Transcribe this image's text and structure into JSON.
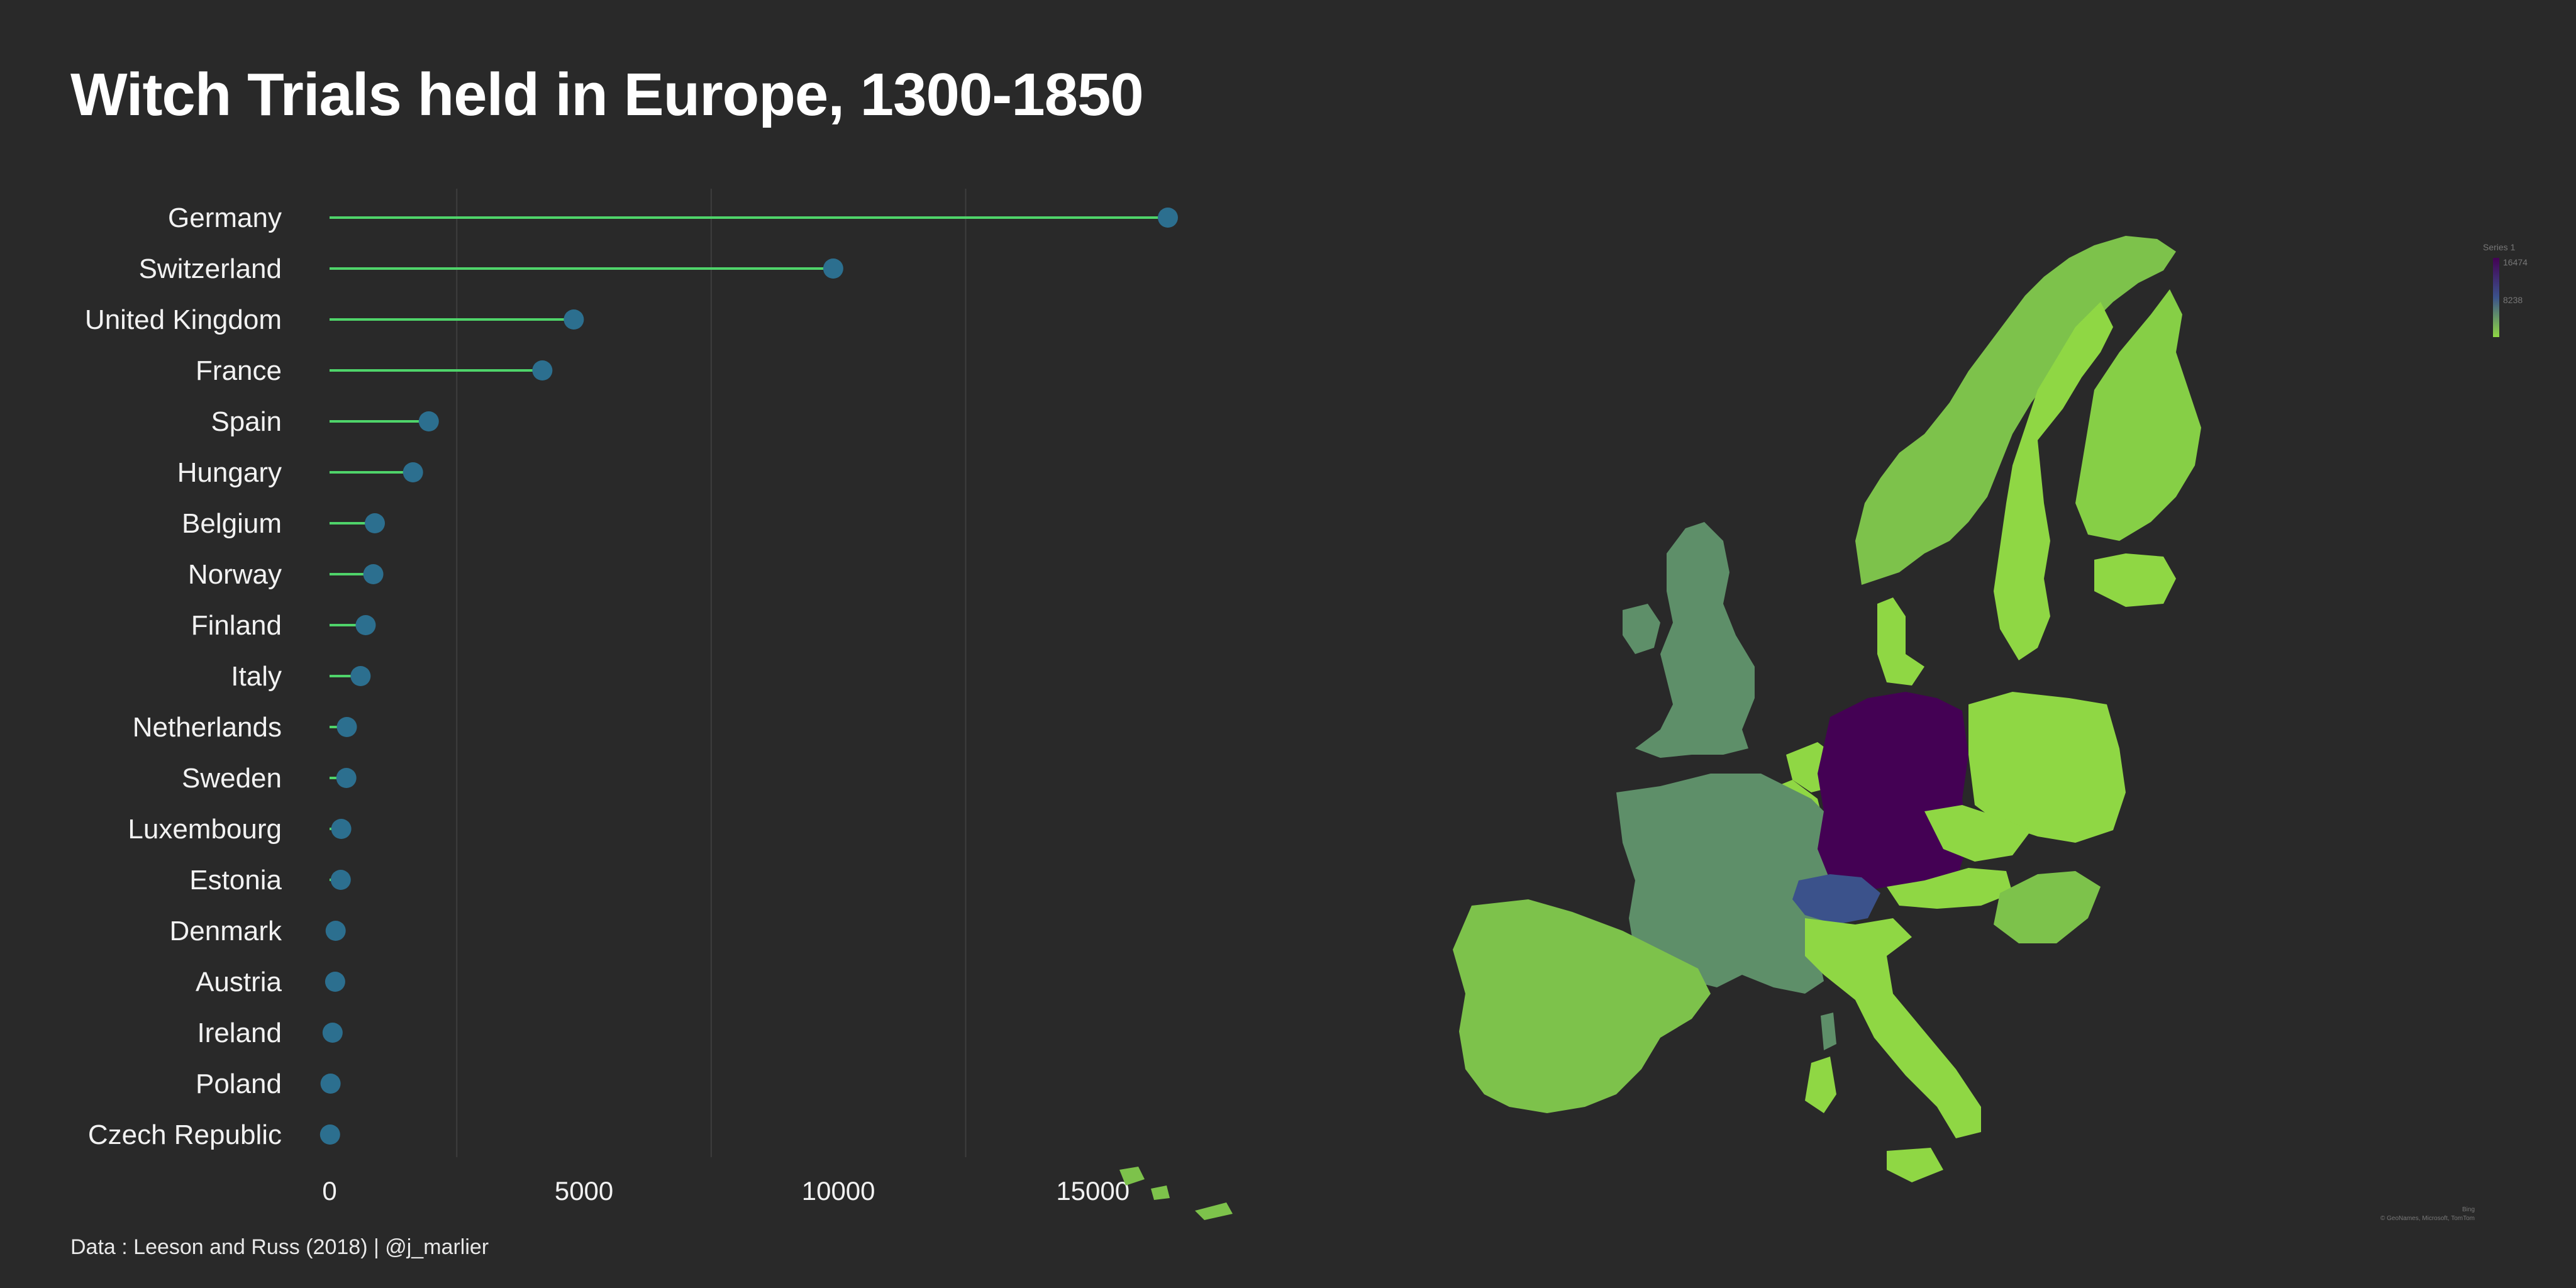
{
  "title": "Witch Trials held in Europe, 1300-1850",
  "caption": "Data : Leeson and Russ (2018) | @j_marlier",
  "colors": {
    "background": "#292929",
    "stem": "#4fd46a",
    "dot": "#2c6f8f",
    "grid": "#3d3d3d",
    "text": "#f2f2f2"
  },
  "chart_data": {
    "type": "lollipop",
    "title": "Witch Trials held in Europe, 1300-1850",
    "xlabel": "",
    "ylabel": "",
    "xlim": [
      0,
      17500
    ],
    "xticks": [
      0,
      5000,
      10000,
      15000
    ],
    "grid": true,
    "categories": [
      "Germany",
      "Switzerland",
      "United Kingdom",
      "France",
      "Spain",
      "Hungary",
      "Belgium",
      "Norway",
      "Finland",
      "Italy",
      "Netherlands",
      "Sweden",
      "Luxembourg",
      "Estonia",
      "Denmark",
      "Austria",
      "Ireland",
      "Poland",
      "Czech Republic"
    ],
    "values": [
      16474,
      9898,
      4800,
      4182,
      1950,
      1640,
      890,
      860,
      710,
      610,
      340,
      330,
      230,
      220,
      120,
      110,
      60,
      20,
      10
    ]
  },
  "map": {
    "legend_title": "Series 1",
    "legend_max": "16474",
    "legend_mid": "8238",
    "attribution_line1": "Bing",
    "attribution_line2": "© GeoNames, Microsoft, TomTom"
  }
}
